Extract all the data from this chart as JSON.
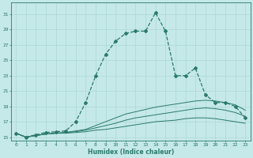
{
  "title": "",
  "xlabel": "Humidex (Indice chaleur)",
  "ylabel": "",
  "bg_color": "#c5e8e8",
  "grid_color": "#a8d4d4",
  "line_color": "#2a7a6a",
  "xlim": [
    -0.5,
    23.5
  ],
  "ylim": [
    14.5,
    32.5
  ],
  "yticks": [
    15,
    17,
    19,
    21,
    23,
    25,
    27,
    29,
    31
  ],
  "xticks": [
    0,
    1,
    2,
    3,
    4,
    5,
    6,
    7,
    8,
    9,
    10,
    11,
    12,
    13,
    14,
    15,
    16,
    17,
    18,
    19,
    20,
    21,
    22,
    23
  ],
  "curve1_x": [
    0,
    1,
    2,
    3,
    4,
    5,
    6,
    7,
    8,
    9,
    10,
    11,
    12,
    13,
    14,
    15,
    16,
    17,
    18,
    19,
    20,
    21,
    22,
    23
  ],
  "curve1_y": [
    15.5,
    15.0,
    15.3,
    15.6,
    15.7,
    15.8,
    17.0,
    19.5,
    23.0,
    25.8,
    27.5,
    28.5,
    28.8,
    28.8,
    31.2,
    28.8,
    23.0,
    23.0,
    24.0,
    20.5,
    19.5,
    19.5,
    19.0,
    17.5
  ],
  "curve2_x": [
    0,
    1,
    2,
    3,
    4,
    5,
    6,
    7,
    8,
    9,
    10,
    11,
    12,
    13,
    14,
    15,
    16,
    17,
    18,
    19,
    20,
    21,
    22,
    23
  ],
  "curve2_y": [
    15.5,
    15.0,
    15.2,
    15.4,
    15.5,
    15.6,
    15.8,
    16.0,
    16.5,
    17.0,
    17.5,
    18.0,
    18.3,
    18.6,
    18.9,
    19.1,
    19.3,
    19.5,
    19.7,
    19.8,
    19.7,
    19.5,
    19.2,
    18.5
  ],
  "curve3_x": [
    0,
    1,
    2,
    3,
    4,
    5,
    6,
    7,
    8,
    9,
    10,
    11,
    12,
    13,
    14,
    15,
    16,
    17,
    18,
    19,
    20,
    21,
    22,
    23
  ],
  "curve3_y": [
    15.5,
    15.0,
    15.2,
    15.4,
    15.5,
    15.6,
    15.7,
    15.9,
    16.2,
    16.5,
    16.8,
    17.2,
    17.5,
    17.7,
    17.9,
    18.1,
    18.3,
    18.5,
    18.7,
    18.8,
    18.7,
    18.5,
    18.2,
    17.7
  ],
  "curve4_x": [
    0,
    1,
    2,
    3,
    4,
    5,
    6,
    7,
    8,
    9,
    10,
    11,
    12,
    13,
    14,
    15,
    16,
    17,
    18,
    19,
    20,
    21,
    22,
    23
  ],
  "curve4_y": [
    15.5,
    15.0,
    15.2,
    15.4,
    15.5,
    15.5,
    15.6,
    15.7,
    15.9,
    16.0,
    16.2,
    16.4,
    16.6,
    16.8,
    17.0,
    17.1,
    17.2,
    17.4,
    17.5,
    17.5,
    17.4,
    17.2,
    17.0,
    16.8
  ]
}
